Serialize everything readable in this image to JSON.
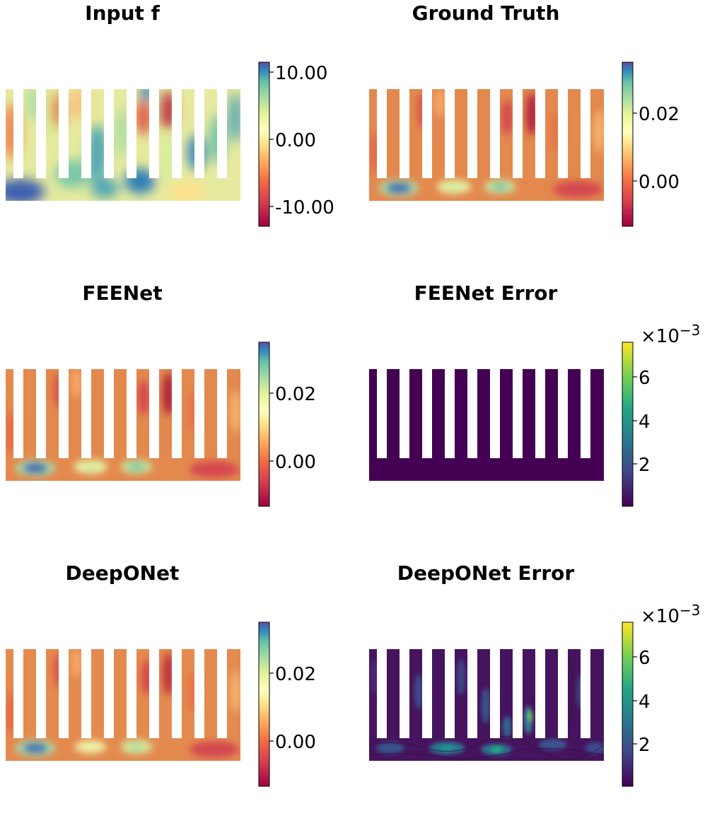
{
  "figure_layout": "3 rows x 2 columns of 2D field plots on a comb-shaped domain",
  "panels": [
    {
      "title": "Input f",
      "colormap": "Spectral",
      "cbar": {
        "ticks": [
          "10.00",
          "0.00",
          "-10.00"
        ],
        "tick_values": [
          10,
          0,
          -10
        ],
        "range": [
          -13,
          12
        ],
        "exponent": null
      }
    },
    {
      "title": "Ground Truth",
      "colormap": "Spectral",
      "cbar": {
        "ticks": [
          "0.02",
          "0.00"
        ],
        "tick_values": [
          0.02,
          0.0
        ],
        "range": [
          -0.013,
          0.035
        ],
        "exponent": null
      }
    },
    {
      "title": "FEENet",
      "colormap": "Spectral",
      "cbar": {
        "ticks": [
          "0.02",
          "0.00"
        ],
        "tick_values": [
          0.02,
          0.0
        ],
        "range": [
          -0.013,
          0.035
        ],
        "exponent": null
      }
    },
    {
      "title": "FEENet Error",
      "colormap": "viridis",
      "cbar": {
        "ticks": [
          "6",
          "4",
          "2"
        ],
        "tick_values": [
          6,
          4,
          2
        ],
        "range": [
          0,
          7.5
        ],
        "exponent": "×10",
        "exponent_power": "−3"
      }
    },
    {
      "title": "DeepONet",
      "colormap": "Spectral",
      "cbar": {
        "ticks": [
          "0.02",
          "0.00"
        ],
        "tick_values": [
          0.02,
          0.0
        ],
        "range": [
          -0.013,
          0.035
        ],
        "exponent": null
      }
    },
    {
      "title": "DeepONet Error",
      "colormap": "viridis",
      "cbar": {
        "ticks": [
          "6",
          "4",
          "2"
        ],
        "tick_values": [
          6,
          4,
          2
        ],
        "range": [
          0,
          7.5
        ],
        "exponent": "×10",
        "exponent_power": "−3"
      }
    }
  ],
  "chart_data": [
    {
      "type": "heatmap",
      "title": "Input f",
      "colorbar_ticks": [
        "10.00",
        "0.00",
        "-10.00"
      ],
      "colorbar_range": [
        -13,
        12
      ]
    },
    {
      "type": "heatmap",
      "title": "Ground Truth",
      "colorbar_ticks": [
        "0.02",
        "0.00"
      ],
      "colorbar_range": [
        -0.013,
        0.035
      ]
    },
    {
      "type": "heatmap",
      "title": "FEENet",
      "colorbar_ticks": [
        "0.02",
        "0.00"
      ],
      "colorbar_range": [
        -0.013,
        0.035
      ]
    },
    {
      "type": "heatmap",
      "title": "FEENet Error",
      "colorbar_ticks": [
        "6",
        "4",
        "2"
      ],
      "colorbar_range": [
        0,
        7.5
      ],
      "colorbar_scale": "×10^-3"
    },
    {
      "type": "heatmap",
      "title": "DeepONet",
      "colorbar_ticks": [
        "0.02",
        "0.00"
      ],
      "colorbar_range": [
        -0.013,
        0.035
      ]
    },
    {
      "type": "heatmap",
      "title": "DeepONet Error",
      "colorbar_ticks": [
        "6",
        "4",
        "2"
      ],
      "colorbar_range": [
        0,
        7.5
      ],
      "colorbar_scale": "×10^-3"
    }
  ]
}
